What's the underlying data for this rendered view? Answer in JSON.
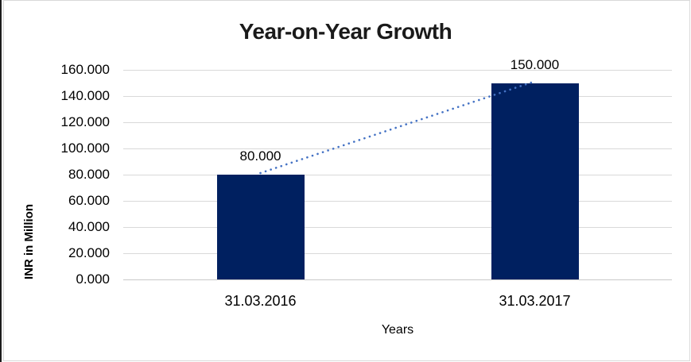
{
  "chart_data": {
    "type": "bar",
    "title": "Year-on-Year Growth",
    "xlabel": "Years",
    "ylabel": "INR in Million",
    "categories": [
      "31.03.2016",
      "31.03.2017"
    ],
    "values": [
      80,
      150
    ],
    "data_labels": [
      "80.000",
      "150.000"
    ],
    "ytick_labels": [
      "0.000",
      "20.000",
      "40.000",
      "60.000",
      "80.000",
      "100.000",
      "120.000",
      "140.000",
      "160.000"
    ],
    "ytick_step": 20,
    "ylim": [
      0,
      160
    ],
    "grid": true,
    "legend": false,
    "trendline": {
      "style": "dotted",
      "color": "#4472C4",
      "points": [
        {
          "category_index": 0,
          "value": 80
        },
        {
          "category_index": 1,
          "value": 150
        }
      ]
    },
    "colors": {
      "bar": "#002060",
      "trendline": "#4472C4",
      "gridline": "#D9D9D9",
      "axis_line": "#C9C9C9",
      "text": "#000000",
      "title_text": "#1A1A1A"
    }
  }
}
